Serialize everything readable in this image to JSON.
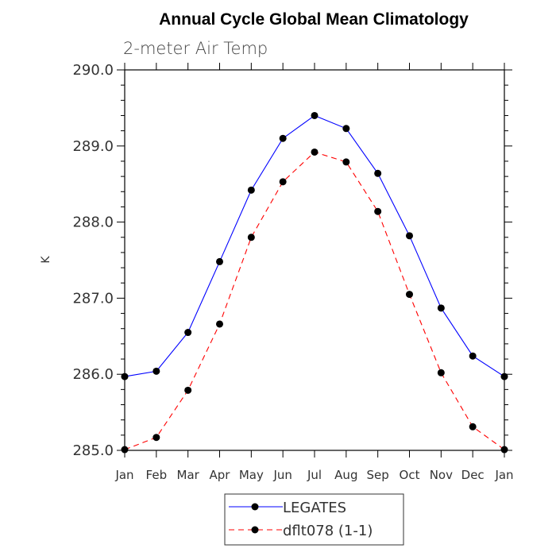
{
  "chart_data": {
    "type": "line",
    "title": "Annual Cycle Global Mean Climatology",
    "subtitle": "2-meter Air Temp",
    "ylabel": "K",
    "xlabel": "",
    "categories": [
      "Jan",
      "Feb",
      "Mar",
      "Apr",
      "May",
      "Jun",
      "Jul",
      "Aug",
      "Sep",
      "Oct",
      "Nov",
      "Dec",
      "Jan"
    ],
    "ylim": [
      285.0,
      290.0
    ],
    "yticks": [
      "285.0",
      "286.0",
      "287.0",
      "288.0",
      "289.0",
      "290.0"
    ],
    "ytick_values": [
      285.0,
      286.0,
      287.0,
      288.0,
      289.0,
      290.0
    ],
    "series": [
      {
        "name": "LEGATES",
        "color": "#0000ff",
        "style": "solid",
        "values": [
          285.97,
          286.04,
          286.55,
          287.48,
          288.42,
          289.1,
          289.4,
          289.23,
          288.64,
          287.82,
          286.87,
          286.24,
          285.97
        ]
      },
      {
        "name": "dflt078 (1-1)",
        "color": "#ff0000",
        "style": "dashed",
        "values": [
          285.01,
          285.17,
          285.79,
          286.66,
          287.8,
          288.53,
          288.92,
          288.79,
          288.14,
          287.05,
          286.02,
          285.31,
          285.01
        ]
      }
    ],
    "grid": false,
    "legend_position": "bottom-center"
  }
}
